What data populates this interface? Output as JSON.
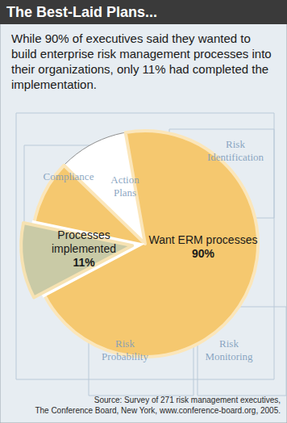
{
  "chart_data": {
    "type": "pie",
    "title": "The Best-Laid Plans...",
    "subtitle": "While 90% of executives said they wanted to build enterprise risk management processes into their organizations, only 11% had completed the implementation.",
    "categories": [
      "Want ERM processes",
      "Processes implemented"
    ],
    "values": [
      90,
      11
    ],
    "value_labels": [
      "90%",
      "11%"
    ],
    "colors": [
      "#f5c86f",
      "#c9caa6"
    ],
    "data_labels": true,
    "annotations": [
      [
        "Compliance"
      ],
      [
        "Risk",
        "Identification"
      ],
      [
        "Action",
        "Plans"
      ],
      [
        "Risk",
        "Probability"
      ],
      [
        "Risk",
        "Monitoring"
      ]
    ],
    "source": [
      "Source: Survey of 271 risk management executives,",
      "The Conference Board, New York, www.conference-board.org, 2005."
    ]
  }
}
